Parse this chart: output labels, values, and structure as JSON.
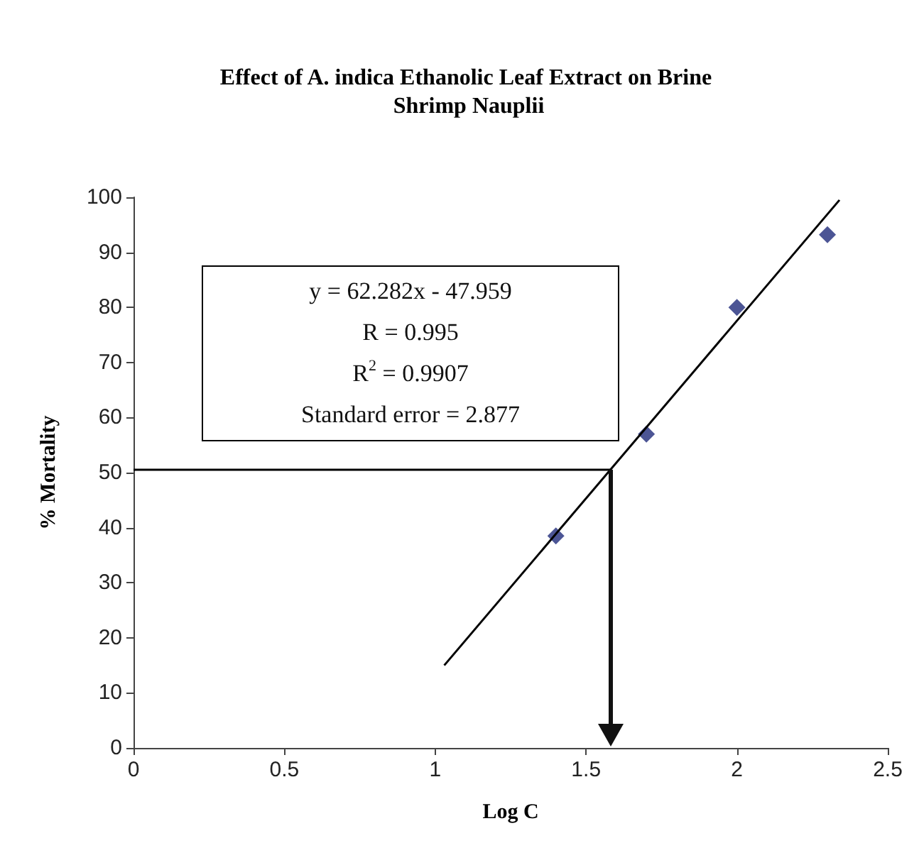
{
  "chart_data": {
    "type": "scatter",
    "title": "Effect of A. indica Ethanolic Leaf Extract on Brine Shrimp Nauplii",
    "xlabel": "Log C",
    "ylabel": "% Mortality",
    "xlim": [
      0,
      2.5
    ],
    "xticks": [
      0,
      0.5,
      1,
      1.5,
      2,
      2.5
    ],
    "ylim": [
      0,
      100
    ],
    "yticks": [
      0,
      10,
      20,
      30,
      40,
      50,
      60,
      70,
      80,
      90,
      100
    ],
    "grid": false,
    "series": [
      {
        "color": "#1f2a7a",
        "marker": "diamond",
        "x": [
          1.4,
          1.7,
          2.0,
          2.3
        ],
        "values": [
          38.5,
          57,
          80,
          93.2
        ]
      },
      {
        "type": "line",
        "marker": "none",
        "color": "#000000",
        "x": [
          1.03,
          2.34
        ],
        "values": [
          15,
          99.5
        ]
      },
      {
        "type": "line",
        "marker": "none",
        "color": "#000000",
        "x": [
          0,
          1.58
        ],
        "values": [
          50.5,
          50.5
        ]
      }
    ],
    "annotations": [
      "y = 62.282x - 47.959",
      "R = 0.995",
      "R$^{2}$ = 0.9907",
      "Standard error = 2.877"
    ]
  }
}
